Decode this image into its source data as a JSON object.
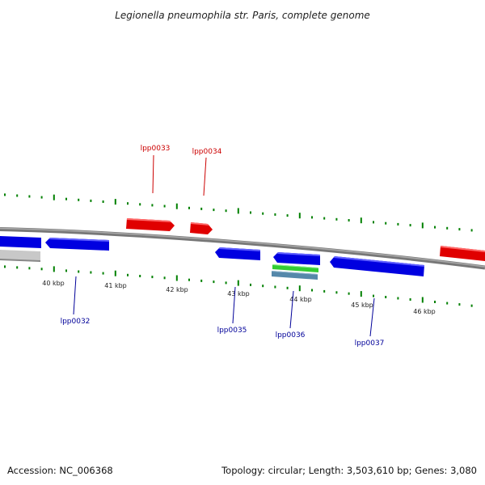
{
  "title": "Legionella pneumophila str. Paris, complete genome",
  "footer": {
    "accession": "Accession: NC_006368",
    "topology": "Topology: circular; Length: 3,503,610 bp; Genes: 3,080"
  },
  "scale_labels": [
    "40 kbp",
    "41 kbp",
    "42 kbp",
    "43 kbp",
    "44 kbp",
    "45 kbp",
    "46 kbp"
  ],
  "colors": {
    "forward_gene": "#e00000",
    "reverse_gene": "#0000e0",
    "backbone": "#888888",
    "tick": "#008000",
    "forward_label": "#cc0000",
    "reverse_label": "#000099",
    "rna_green": "#33cc33",
    "rna_steel": "#5588aa",
    "other_gray": "#c8c8c8"
  },
  "gene_labels": {
    "forward": [
      "lpp0033",
      "lpp0034"
    ],
    "reverse": [
      "lpp0032",
      "lpp0035",
      "lpp0036",
      "lpp0037"
    ]
  }
}
